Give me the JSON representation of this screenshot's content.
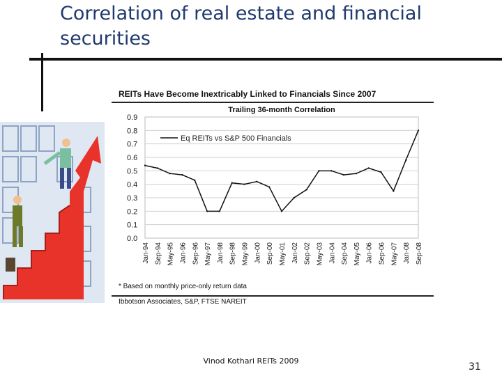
{
  "slide": {
    "title": "Correlation of real estate and financial securities",
    "footer": "Vinod Kothari REITs 2009",
    "page_number": "31"
  },
  "chart_header": "REITs Have Become Inextricably Linked to Financials Since 2007",
  "footnote": "* Based on monthly price-only return data",
  "source": "Ibbotson Associates, S&P, FTSE NAREIT",
  "colors": {
    "title": "#1f3a6e",
    "line": "#111111",
    "grid": "#cfcfcf"
  },
  "chart_data": {
    "type": "line",
    "title": "Trailing 36-month Correlation",
    "xlabel": "",
    "ylabel": "",
    "ylim": [
      0,
      0.9
    ],
    "yticks": [
      "0.0",
      "0.1",
      "0.2",
      "0.3",
      "0.4",
      "0.5",
      "0.6",
      "0.7",
      "0.8",
      "0.9"
    ],
    "grid": true,
    "legend_position": "top-left",
    "x": [
      "Jan-94",
      "Sep-94",
      "May-95",
      "Jan-96",
      "Sep-96",
      "May-97",
      "Jan-98",
      "Sep-98",
      "May-99",
      "Jan-00",
      "Sep-00",
      "May-01",
      "Jan-02",
      "Sep-02",
      "May-03",
      "Jan-04",
      "Sep-04",
      "May-05",
      "Jan-06",
      "Sep-06",
      "May-07",
      "Jan-08",
      "Sep-08"
    ],
    "series": [
      {
        "name": "Eq REITs vs S&P 500 Financials",
        "values": [
          0.54,
          0.52,
          0.48,
          0.47,
          0.43,
          0.2,
          0.2,
          0.41,
          0.4,
          0.42,
          0.38,
          0.2,
          0.3,
          0.36,
          0.5,
          0.5,
          0.47,
          0.48,
          0.52,
          0.49,
          0.35,
          0.58,
          0.8
        ]
      }
    ]
  }
}
